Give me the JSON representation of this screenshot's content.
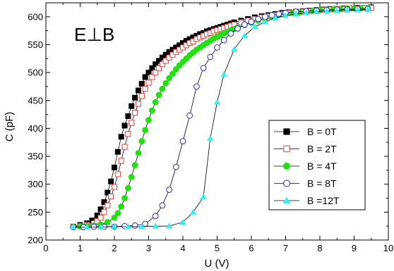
{
  "chart_data": {
    "type": "scatter",
    "annotation": "E⊥B",
    "xlabel": "U (V)",
    "ylabel": "C (pF)",
    "xlim": [
      0,
      10
    ],
    "ylim": [
      200,
      625
    ],
    "x_ticks": [
      "0",
      "1",
      "2",
      "3",
      "4",
      "5",
      "6",
      "7",
      "8",
      "9",
      "10"
    ],
    "y_ticks": [
      "200",
      "250",
      "300",
      "350",
      "400",
      "450",
      "500",
      "550",
      "600"
    ],
    "grid": false,
    "legend_position": "right-center",
    "series": [
      {
        "name": "B = 0T",
        "marker": "square-filled",
        "color": "#000000",
        "x": [
          0.8,
          1.0,
          1.2,
          1.35,
          1.5,
          1.6,
          1.7,
          1.8,
          1.9,
          2.0,
          2.1,
          2.2,
          2.3,
          2.4,
          2.5,
          2.6,
          2.7,
          2.8,
          2.9,
          3.0,
          3.1,
          3.2,
          3.3,
          3.4,
          3.5,
          3.6,
          3.7,
          3.8,
          3.9,
          4.0,
          4.1,
          4.2,
          4.3,
          4.4,
          4.5,
          4.6,
          4.7,
          4.8,
          4.9,
          5.0,
          5.1,
          5.2,
          5.3,
          5.4,
          5.5,
          5.7,
          5.9,
          6.1,
          6.3,
          6.5,
          6.7,
          6.9,
          7.1,
          7.3,
          7.5,
          7.7,
          7.9,
          8.1,
          8.3,
          8.5,
          8.7,
          8.9,
          9.1,
          9.3,
          9.5
        ],
        "values": [
          224,
          227,
          230,
          235,
          244,
          255,
          268,
          285,
          305,
          330,
          358,
          385,
          405,
          422,
          440,
          455,
          468,
          480,
          492,
          500,
          508,
          515,
          521,
          527,
          532,
          537,
          541,
          545,
          549,
          553,
          557,
          560,
          563,
          566,
          569,
          571,
          574,
          576,
          578,
          580,
          582,
          584,
          586,
          588,
          590,
          593,
          596,
          599,
          601,
          603,
          605,
          607,
          608,
          609,
          610,
          611,
          612,
          613,
          614,
          614,
          615,
          615,
          616,
          616,
          617
        ]
      },
      {
        "name": "B = 2T",
        "marker": "square-open",
        "color": "#e8403a",
        "x": [
          0.8,
          1.0,
          1.2,
          1.4,
          1.5,
          1.6,
          1.7,
          1.8,
          1.9,
          2.0,
          2.1,
          2.2,
          2.3,
          2.4,
          2.5,
          2.6,
          2.7,
          2.8,
          2.9,
          3.0,
          3.1,
          3.2,
          3.3,
          3.4,
          3.5,
          3.6,
          3.7,
          3.8,
          3.9,
          4.0,
          4.1,
          4.2,
          4.3,
          4.4,
          4.5,
          4.6,
          4.7,
          4.8,
          4.9,
          5.0,
          5.1,
          5.2,
          5.3,
          5.4,
          5.5,
          5.7,
          5.9,
          6.1,
          6.3,
          6.5,
          6.7,
          6.9,
          7.1,
          7.3,
          7.5,
          7.7,
          7.9,
          8.1,
          8.3,
          8.5,
          8.7,
          8.9,
          9.1,
          9.3,
          9.5
        ],
        "values": [
          224,
          225,
          227,
          230,
          234,
          240,
          250,
          262,
          278,
          295,
          318,
          342,
          367,
          390,
          410,
          428,
          444,
          458,
          471,
          482,
          492,
          500,
          508,
          515,
          521,
          527,
          532,
          537,
          541,
          545,
          549,
          553,
          556,
          560,
          563,
          566,
          569,
          571,
          574,
          576,
          578,
          580,
          582,
          584,
          586,
          590,
          593,
          596,
          599,
          601,
          603,
          605,
          607,
          608,
          609,
          610,
          611,
          612,
          613,
          614,
          614,
          615,
          615,
          616,
          616
        ]
      },
      {
        "name": "B = 4T",
        "marker": "circle-filled",
        "color": "#22e010",
        "x": [
          0.8,
          1.0,
          1.2,
          1.4,
          1.6,
          1.8,
          2.0,
          2.1,
          2.2,
          2.3,
          2.4,
          2.5,
          2.6,
          2.7,
          2.8,
          2.9,
          3.0,
          3.1,
          3.2,
          3.3,
          3.4,
          3.5,
          3.6,
          3.7,
          3.8,
          3.9,
          4.0,
          4.1,
          4.2,
          4.3,
          4.4,
          4.5,
          4.6,
          4.7,
          4.8,
          4.9,
          5.0,
          5.1,
          5.2,
          5.3,
          5.4,
          5.5,
          5.6,
          5.8,
          6.0,
          6.2,
          6.4,
          6.6,
          6.8,
          7.0,
          7.2,
          7.4,
          7.6,
          7.8,
          8.0,
          8.2,
          8.4,
          8.6,
          8.8,
          9.0,
          9.2,
          9.4
        ],
        "values": [
          224,
          224,
          225,
          226,
          228,
          232,
          240,
          248,
          260,
          275,
          293,
          313,
          334,
          356,
          377,
          397,
          415,
          432,
          447,
          460,
          471,
          481,
          490,
          498,
          506,
          513,
          519,
          525,
          531,
          536,
          541,
          545,
          549,
          553,
          557,
          561,
          564,
          567,
          570,
          573,
          576,
          578,
          581,
          585,
          589,
          593,
          597,
          600,
          603,
          605,
          607,
          608,
          610,
          611,
          612,
          613,
          614,
          614,
          615,
          615,
          615,
          615
        ]
      },
      {
        "name": "B = 8T",
        "marker": "circle-open",
        "color": "#2a2ad8",
        "x": [
          0.8,
          1.1,
          1.4,
          1.7,
          2.0,
          2.3,
          2.6,
          2.9,
          3.2,
          3.4,
          3.6,
          3.8,
          4.0,
          4.2,
          4.4,
          4.6,
          4.8,
          5.0,
          5.2,
          5.4,
          5.6,
          5.8,
          6.0,
          6.2,
          6.4,
          6.6,
          6.8,
          7.0,
          7.3,
          7.6,
          7.9,
          8.2,
          8.5,
          8.8,
          9.1,
          9.4
        ],
        "values": [
          223,
          223,
          224,
          224,
          224,
          225,
          226,
          229,
          243,
          262,
          290,
          331,
          377,
          423,
          475,
          508,
          528,
          545,
          558,
          570,
          579,
          586,
          591,
          596,
          600,
          603,
          605,
          607,
          609,
          610,
          611,
          612,
          613,
          613,
          614,
          614
        ]
      },
      {
        "name": "B =12T",
        "marker": "triangle-filled",
        "color": "#33f0f0",
        "x": [
          0.8,
          1.2,
          1.6,
          2.0,
          2.4,
          2.8,
          3.2,
          3.6,
          4.0,
          4.3,
          4.6,
          4.8,
          5.0,
          5.2,
          5.5,
          5.8,
          6.1,
          6.4,
          6.7,
          7.0,
          7.3,
          7.6,
          7.9,
          8.2,
          8.5,
          8.8,
          9.1,
          9.4
        ],
        "values": [
          223,
          223,
          223,
          224,
          224,
          224,
          225,
          225,
          232,
          250,
          277,
          382,
          447,
          497,
          542,
          566,
          582,
          591,
          598,
          602,
          605,
          607,
          609,
          610,
          611,
          612,
          612,
          613
        ]
      }
    ]
  }
}
